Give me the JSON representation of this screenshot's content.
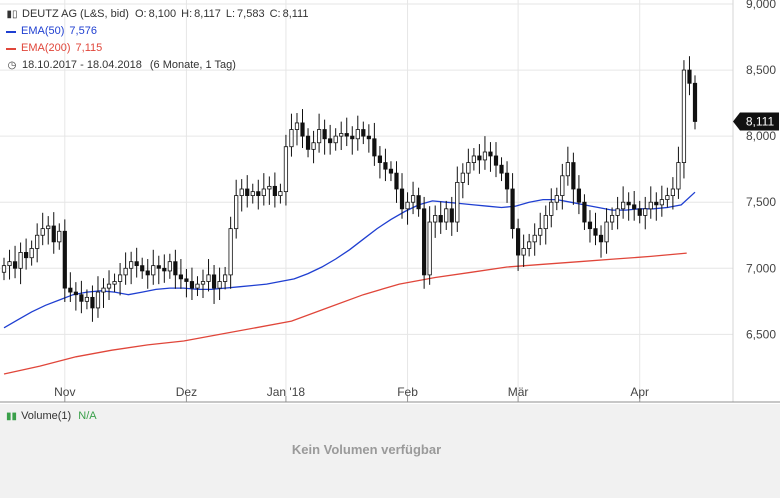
{
  "header": {
    "symbol_line": "DEUTZ AG (L&S, bid)",
    "ohlc": {
      "o_label": "O:",
      "o": "8,100",
      "h_label": "H:",
      "h": "8,117",
      "l_label": "L:",
      "l": "7,583",
      "c_label": "C:",
      "c": "8,111"
    },
    "ema50": {
      "label": "EMA(50)",
      "value": "7,576",
      "color": "#1f3fd1"
    },
    "ema200": {
      "label": "EMA(200)",
      "value": "7,115",
      "color": "#e0463a"
    },
    "period": "18.10.2017 - 18.04.2018",
    "period_note": "(6 Monate, 1 Tag)",
    "period_icon": "clock-icon",
    "chart_icon": "candlestick-icon"
  },
  "last_price_label": "8,111",
  "volume": {
    "label": "Volume(1)",
    "value": "N/A",
    "empty_text": "Kein Volumen verfügbar",
    "icon": "bar-icon"
  },
  "chart_data": {
    "type": "candlestick",
    "x_ticks": [
      {
        "label": "Nov",
        "index": 11
      },
      {
        "label": "Dez",
        "index": 33
      },
      {
        "label": "Jan '18",
        "index": 51
      },
      {
        "label": "Feb",
        "index": 73
      },
      {
        "label": "Mär",
        "index": 93
      },
      {
        "label": "Apr",
        "index": 115
      }
    ],
    "y_ticks": [
      "6,500",
      "7,000",
      "7,500",
      "8,000",
      "8,500",
      "9,000"
    ],
    "y_tick_values": [
      6.5,
      7.0,
      7.5,
      8.0,
      8.5,
      9.0
    ],
    "ylim": [
      6.2,
      9.0
    ],
    "last_price": 8.111,
    "closes": [
      7.02,
      7.05,
      7.0,
      7.12,
      7.08,
      7.15,
      7.25,
      7.3,
      7.32,
      7.2,
      7.28,
      6.85,
      6.82,
      6.8,
      6.75,
      6.78,
      6.7,
      6.82,
      6.85,
      6.88,
      6.9,
      6.95,
      7.0,
      7.05,
      7.02,
      6.98,
      6.95,
      7.02,
      7.0,
      6.98,
      7.05,
      6.95,
      6.92,
      6.9,
      6.85,
      6.88,
      6.9,
      6.95,
      6.85,
      6.9,
      6.95,
      7.3,
      7.55,
      7.6,
      7.55,
      7.58,
      7.55,
      7.6,
      7.62,
      7.55,
      7.58,
      7.92,
      8.05,
      8.1,
      8.0,
      7.9,
      7.95,
      8.05,
      7.98,
      7.95,
      8.0,
      8.02,
      8.0,
      7.98,
      8.05,
      8.0,
      7.98,
      7.85,
      7.8,
      7.75,
      7.72,
      7.6,
      7.45,
      7.5,
      7.55,
      7.45,
      6.95,
      7.35,
      7.4,
      7.35,
      7.45,
      7.35,
      7.65,
      7.72,
      7.8,
      7.85,
      7.82,
      7.88,
      7.85,
      7.78,
      7.72,
      7.6,
      7.3,
      7.1,
      7.15,
      7.2,
      7.25,
      7.3,
      7.4,
      7.5,
      7.55,
      7.7,
      7.8,
      7.6,
      7.5,
      7.35,
      7.3,
      7.25,
      7.2,
      7.35,
      7.4,
      7.45,
      7.5,
      7.48,
      7.45,
      7.4,
      7.45,
      7.5,
      7.48,
      7.52,
      7.55,
      7.6,
      7.8,
      8.5,
      8.4,
      8.111
    ],
    "ema50": [
      6.55,
      6.61,
      6.67,
      6.72,
      6.76,
      6.8,
      6.82,
      6.83,
      6.82,
      6.8,
      6.82,
      6.84,
      6.85,
      6.85,
      6.84,
      6.84,
      6.85,
      6.86,
      6.87,
      6.88,
      6.9,
      6.92,
      6.96,
      7.01,
      7.07,
      7.14,
      7.22,
      7.3,
      7.37,
      7.43,
      7.48,
      7.51,
      7.5,
      7.49,
      7.48,
      7.47,
      7.46,
      7.47,
      7.5,
      7.52,
      7.52,
      7.5,
      7.48,
      7.46,
      7.44,
      7.44,
      7.45,
      7.45,
      7.46,
      7.48,
      7.576
    ],
    "ema50_start": 0,
    "ema50_step": 2.5,
    "ema200": [
      6.2,
      6.26,
      6.33,
      6.38,
      6.42,
      6.45,
      6.5,
      6.55,
      6.6,
      6.7,
      6.8,
      6.88,
      6.93,
      6.97,
      7.01,
      7.03,
      7.05,
      7.07,
      7.09,
      7.115
    ],
    "ema200_start": 0,
    "ema200_step": 6.5
  }
}
